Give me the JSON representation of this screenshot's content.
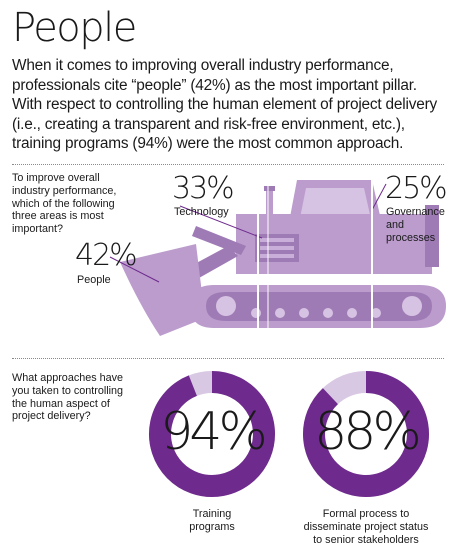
{
  "header": {
    "title": "People",
    "intro": "When it comes to improving overall industry performance, professionals cite “people” (42%) as the most important pillar. With respect to controlling the human element of project delivery (i.e., creating a transparent and risk-free environment, etc.), training programs (94%) were the most common approach."
  },
  "colors": {
    "accent": "#6e2a8c",
    "machine": "#bb9ccd",
    "machine_dark": "#9f7bb6",
    "ring_track": "#d9c8e3"
  },
  "chart_data": [
    {
      "type": "bar",
      "question": "To improve overall industry performance, which of the following three areas is most important?",
      "categories": [
        "People",
        "Technology",
        "Governance and processes"
      ],
      "values": [
        42,
        33,
        25
      ],
      "value_labels": [
        "42%",
        "33%",
        "25%"
      ],
      "unit": "%"
    },
    {
      "type": "pie",
      "question": "What approaches have you taken to controlling the human aspect of project delivery?",
      "categories": [
        "Training programs",
        "Formal process to disseminate project status to senior stakeholders"
      ],
      "values": [
        94,
        88
      ],
      "value_labels": [
        "94%",
        "88%"
      ],
      "unit": "%"
    }
  ],
  "labels": {
    "people": "People",
    "technology": "Technology",
    "governance_1": "Governance",
    "governance_2": "and processes",
    "ring1_1": "Training",
    "ring1_2": "programs",
    "ring2_1": "Formal process to",
    "ring2_2": "disseminate project status",
    "ring2_3": "to senior stakeholders",
    "q1_1": "To improve overall",
    "q1_2": "industry performance,",
    "q1_3": "which of the following",
    "q1_4": "three areas is most",
    "q1_5": "important?",
    "q2_1": "What approaches have",
    "q2_2": "you taken to controlling",
    "q2_3": "the human aspect of",
    "q2_4": "project delivery?"
  }
}
